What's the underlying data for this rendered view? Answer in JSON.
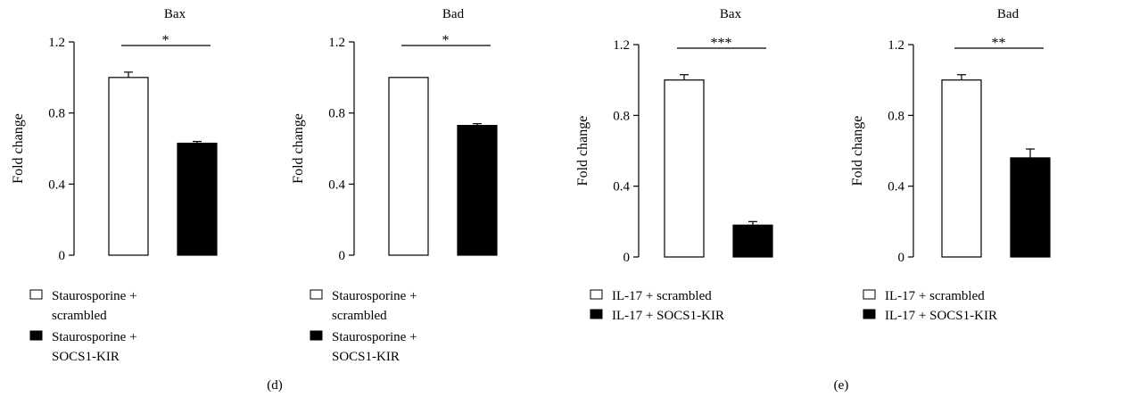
{
  "panel_labels": [
    "(d)",
    "(e)"
  ],
  "chart_data": [
    {
      "type": "bar",
      "title": "Bax",
      "ylabel": "Fold change",
      "ylim": [
        0,
        1.2
      ],
      "yticks": [
        "0",
        "0.4",
        "0.8",
        "1.2"
      ],
      "categories": [
        "Staurosporine + scrambled",
        "Staurosporine + SOCS1-KIR"
      ],
      "values": [
        1.0,
        0.63
      ],
      "errors": [
        0.03,
        0.01
      ],
      "bar_colors": [
        "#ffffff",
        "#000000"
      ],
      "significance": "*",
      "legend": [
        {
          "line1": "Staurosporine +",
          "line2": "scrambled"
        },
        {
          "line1": "Staurosporine +",
          "line2": "SOCS1-KIR"
        }
      ]
    },
    {
      "type": "bar",
      "title": "Bad",
      "ylabel": "Fold change",
      "ylim": [
        0,
        1.2
      ],
      "yticks": [
        "0",
        "0.4",
        "0.8",
        "1.2"
      ],
      "categories": [
        "Staurosporine + scrambled",
        "Staurosporine + SOCS1-KIR"
      ],
      "values": [
        1.0,
        0.73
      ],
      "errors": [
        0.0,
        0.01
      ],
      "bar_colors": [
        "#ffffff",
        "#000000"
      ],
      "significance": "*",
      "legend": [
        {
          "line1": "Staurosporine +",
          "line2": "scrambled"
        },
        {
          "line1": "Staurosporine +",
          "line2": "SOCS1-KIR"
        }
      ]
    },
    {
      "type": "bar",
      "title": "Bax",
      "ylabel": "Fold change",
      "ylim": [
        0,
        1.2
      ],
      "yticks": [
        "0",
        "0.4",
        "0.8",
        "1.2"
      ],
      "categories": [
        "IL-17 + scrambled",
        "IL-17 + SOCS1-KIR"
      ],
      "values": [
        1.0,
        0.18
      ],
      "errors": [
        0.03,
        0.02
      ],
      "bar_colors": [
        "#ffffff",
        "#000000"
      ],
      "significance": "***",
      "legend": [
        {
          "line1": "IL-17 + scrambled",
          "line2": ""
        },
        {
          "line1": "IL-17 + SOCS1-KIR",
          "line2": ""
        }
      ]
    },
    {
      "type": "bar",
      "title": "Bad",
      "ylabel": "Fold change",
      "ylim": [
        0,
        1.2
      ],
      "yticks": [
        "0",
        "0.4",
        "0.8",
        "1.2"
      ],
      "categories": [
        "IL-17 + scrambled",
        "IL-17 + SOCS1-KIR"
      ],
      "values": [
        1.0,
        0.56
      ],
      "errors": [
        0.03,
        0.05
      ],
      "bar_colors": [
        "#ffffff",
        "#000000"
      ],
      "significance": "**",
      "legend": [
        {
          "line1": "IL-17 + scrambled",
          "line2": ""
        },
        {
          "line1": "IL-17 + SOCS1-KIR",
          "line2": ""
        }
      ]
    }
  ]
}
